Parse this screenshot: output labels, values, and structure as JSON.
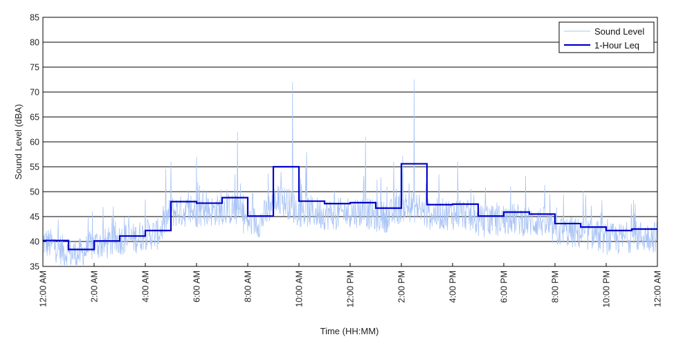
{
  "chart_data": {
    "type": "line",
    "title": "",
    "xlabel": "Time (HH:MM)",
    "ylabel": "Sound Level (dBA)",
    "ylim": [
      35,
      85
    ],
    "yticks": [
      35,
      40,
      45,
      50,
      55,
      60,
      65,
      70,
      75,
      80,
      85
    ],
    "xlim_hours": [
      0,
      24
    ],
    "xtick_labels": [
      "12:00 AM",
      "2:00 AM",
      "4:00 AM",
      "6:00 AM",
      "8:00 AM",
      "10:00 AM",
      "12:00 PM",
      "2:00 PM",
      "4:00 PM",
      "6:00 PM",
      "8:00 PM",
      "10:00 PM",
      "12:00 AM"
    ],
    "grid": "horizontal",
    "legend_position": "top-right",
    "colors": {
      "sound_level": "#a9c4f5",
      "leq": "#0000cc",
      "grid": "#000000"
    },
    "series": [
      {
        "name": "Sound Level",
        "style": "thin-light-blue",
        "peaks": [
          [
            9.75,
            72
          ],
          [
            14.5,
            72.5
          ],
          [
            7.6,
            62
          ],
          [
            12.6,
            61
          ],
          [
            6.0,
            57
          ],
          [
            5.0,
            56
          ],
          [
            10.3,
            58
          ],
          [
            16.2,
            56
          ],
          [
            13.7,
            56
          ]
        ],
        "x_hours": [
          0,
          0.5,
          1,
          1.5,
          2,
          2.5,
          3,
          3.5,
          4,
          4.5,
          5,
          5.5,
          6,
          6.5,
          7,
          7.5,
          8,
          8.5,
          9,
          9.5,
          10,
          10.5,
          11,
          11.5,
          12,
          12.5,
          13,
          13.5,
          14,
          14.5,
          15,
          15.5,
          16,
          16.5,
          17,
          17.5,
          18,
          18.5,
          19,
          19.5,
          20,
          20.5,
          21,
          21.5,
          22,
          22.5,
          23,
          23.5,
          24
        ],
        "mean_values": [
          40,
          39,
          37.5,
          37.5,
          39.5,
          39.5,
          40.5,
          40.5,
          41.5,
          41.5,
          46,
          46,
          46,
          46,
          46.5,
          46.5,
          44,
          44,
          48,
          48,
          46,
          46,
          45.5,
          45.5,
          46,
          46,
          45,
          45,
          47,
          47,
          45.5,
          45.5,
          45.5,
          45.5,
          44,
          44,
          44.5,
          44.5,
          44,
          44,
          42,
          42,
          41.5,
          41.5,
          40.5,
          40.5,
          41,
          41,
          41
        ]
      },
      {
        "name": "1-Hour Leq",
        "style": "thick-blue-step",
        "x_hours": [
          0,
          1,
          2,
          3,
          4,
          5,
          6,
          7,
          8,
          9,
          10,
          11,
          12,
          13,
          14,
          15,
          16,
          17,
          18,
          19,
          20,
          21,
          22,
          23
        ],
        "values": [
          40.2,
          38.4,
          40.1,
          41.1,
          42.2,
          48.0,
          47.7,
          48.8,
          45.1,
          55.0,
          48.1,
          47.6,
          47.8,
          46.7,
          55.6,
          47.4,
          47.5,
          45.1,
          45.9,
          45.5,
          43.6,
          42.9,
          42.2,
          42.5
        ]
      }
    ]
  }
}
